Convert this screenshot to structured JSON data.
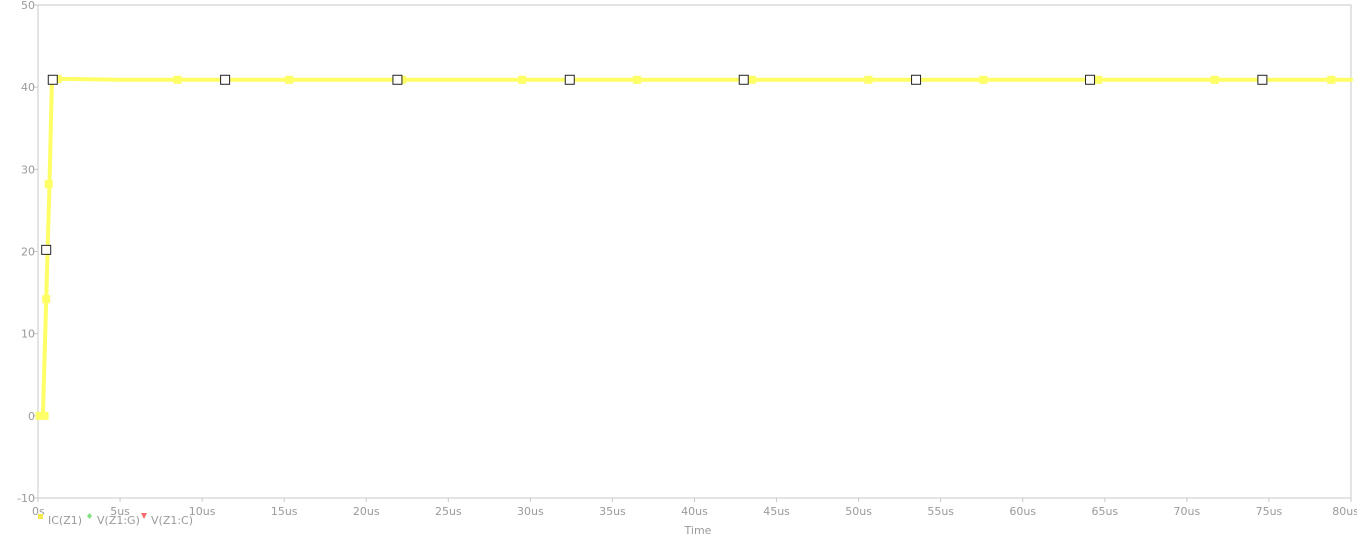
{
  "chart_data": {
    "type": "line",
    "title": "",
    "xlabel": "Time",
    "ylabel": "",
    "xlim": [
      0,
      80
    ],
    "ylim": [
      -10,
      50
    ],
    "x_ticks": [
      {
        "value": 0,
        "label": "0s"
      },
      {
        "value": 5,
        "label": "5us"
      },
      {
        "value": 10,
        "label": "10us"
      },
      {
        "value": 15,
        "label": "15us"
      },
      {
        "value": 20,
        "label": "20us"
      },
      {
        "value": 25,
        "label": "25us"
      },
      {
        "value": 30,
        "label": "30us"
      },
      {
        "value": 35,
        "label": "35us"
      },
      {
        "value": 40,
        "label": "40us"
      },
      {
        "value": 45,
        "label": "45us"
      },
      {
        "value": 50,
        "label": "50us"
      },
      {
        "value": 55,
        "label": "55us"
      },
      {
        "value": 60,
        "label": "60us"
      },
      {
        "value": 65,
        "label": "65us"
      },
      {
        "value": 70,
        "label": "70us"
      },
      {
        "value": 75,
        "label": "75us"
      },
      {
        "value": 80,
        "label": "80us"
      }
    ],
    "y_ticks": [
      {
        "value": -10,
        "label": "-10"
      },
      {
        "value": 0,
        "label": "0"
      },
      {
        "value": 10,
        "label": "10"
      },
      {
        "value": 20,
        "label": "20"
      },
      {
        "value": 30,
        "label": "30"
      },
      {
        "value": 40,
        "label": "40"
      },
      {
        "value": 50,
        "label": "50"
      }
    ],
    "grid": false,
    "legend_position": "bottom-left",
    "legend": [
      {
        "label": "IC(Z1)",
        "color": "#f2e94e",
        "marker": "square"
      },
      {
        "label": "V(Z1:G)",
        "color": "#7fe07f",
        "marker": "diamond"
      },
      {
        "label": "V(Z1:C)",
        "color": "#ff6b6b",
        "marker": "triangle"
      }
    ],
    "series": [
      {
        "name": "IC(Z1)",
        "color": "#ffff66",
        "x": [
          0,
          0.3,
          0.5,
          0.7,
          0.85,
          1.0,
          2.0,
          5.0,
          80.0
        ],
        "y": [
          0,
          0,
          14.2,
          28.2,
          41.0,
          41.0,
          41.0,
          40.9,
          40.9
        ]
      }
    ],
    "filled_markers": [
      {
        "x": 0.1,
        "y": 0
      },
      {
        "x": 0.4,
        "y": 0
      },
      {
        "x": 0.5,
        "y": 14.2
      },
      {
        "x": 0.65,
        "y": 28.2
      },
      {
        "x": 1.2,
        "y": 41.0
      },
      {
        "x": 8.5,
        "y": 40.9
      },
      {
        "x": 15.3,
        "y": 40.9
      },
      {
        "x": 22.2,
        "y": 40.9
      },
      {
        "x": 29.5,
        "y": 40.9
      },
      {
        "x": 36.5,
        "y": 40.9
      },
      {
        "x": 43.5,
        "y": 40.9
      },
      {
        "x": 50.6,
        "y": 40.9
      },
      {
        "x": 57.6,
        "y": 40.9
      },
      {
        "x": 64.6,
        "y": 40.9
      },
      {
        "x": 71.7,
        "y": 40.9
      },
      {
        "x": 78.8,
        "y": 40.9
      }
    ],
    "hollow_markers": [
      {
        "x": 0.5,
        "y": 20.2
      },
      {
        "x": 0.9,
        "y": 40.9
      },
      {
        "x": 11.4,
        "y": 40.9
      },
      {
        "x": 21.9,
        "y": 40.9
      },
      {
        "x": 32.4,
        "y": 40.9
      },
      {
        "x": 43.0,
        "y": 40.9
      },
      {
        "x": 53.5,
        "y": 40.9
      },
      {
        "x": 64.1,
        "y": 40.9
      },
      {
        "x": 74.6,
        "y": 40.9
      }
    ]
  }
}
